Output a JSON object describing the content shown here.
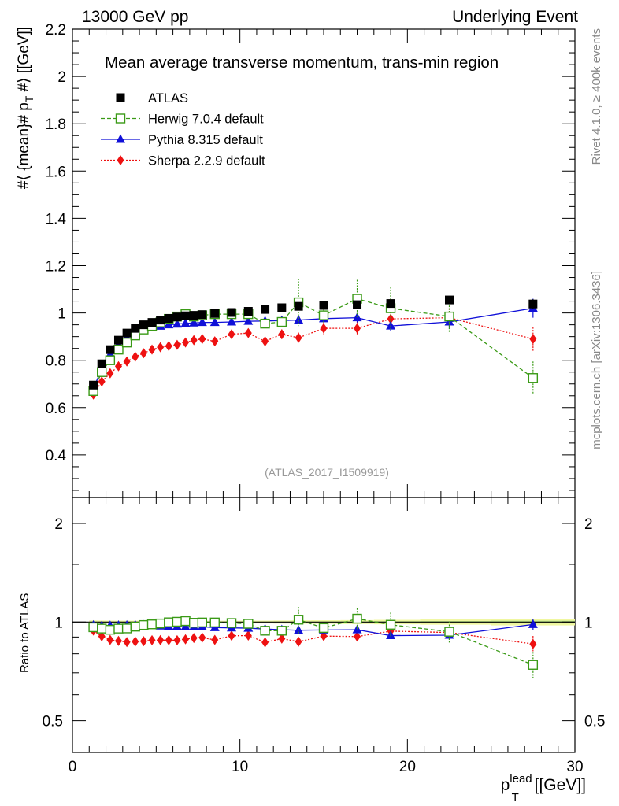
{
  "header": {
    "left_title": "13000 GeV pp",
    "right_title": "Underlying Event"
  },
  "side_labels": {
    "rivet": "Rivet 4.1.0, ≥ 400k events",
    "mcplots": "mcplots.cern.ch [arXiv:1306.3436]"
  },
  "colors": {
    "atlas": "#000000",
    "herwig": "#3a9a16",
    "pythia": "#1010d8",
    "sherpa": "#ee1111",
    "band_outer": "#f0f7a0",
    "band_inner": "#bde58a"
  },
  "chart_data": [
    {
      "type": "scatter",
      "title": "Mean average transverse momentum, trans-min region",
      "analysis_label": "(ATLAS_2017_I1509919)",
      "ylabel": "#⟨ {mean}# p_T #⟩ [[GeV]]",
      "ylabel_parts": {
        "a": "#⟨ {mean}# p",
        "sub": "T",
        "b": " #⟩ [[GeV]]"
      },
      "xlim": [
        0,
        30
      ],
      "ylim": [
        0.22,
        2.2
      ],
      "y_ticks": [
        0.4,
        0.6,
        0.8,
        1,
        1.2,
        1.4,
        1.6,
        1.8,
        2,
        2.2
      ],
      "y_tick_labels": [
        "0.4",
        "0.6",
        "0.8",
        "1",
        "1.2",
        "1.4",
        "1.6",
        "1.8",
        "2",
        "2.2"
      ],
      "legend_position": "top-left",
      "series": [
        {
          "name": "ATLAS",
          "key": "atlas",
          "marker": "square-filled",
          "line": "none",
          "x": [
            1.25,
            1.75,
            2.25,
            2.75,
            3.25,
            3.75,
            4.25,
            4.75,
            5.25,
            5.75,
            6.25,
            6.75,
            7.25,
            7.75,
            8.5,
            9.5,
            10.5,
            11.5,
            12.5,
            13.5,
            15,
            17,
            19,
            22.5,
            27.5
          ],
          "y": [
            0.695,
            0.785,
            0.845,
            0.885,
            0.915,
            0.935,
            0.95,
            0.96,
            0.97,
            0.977,
            0.983,
            0.988,
            0.99,
            0.993,
            0.998,
            1.002,
            1.007,
            1.015,
            1.022,
            1.028,
            1.032,
            1.035,
            1.04,
            1.055,
            1.038
          ],
          "err": [
            0.005,
            0.005,
            0.005,
            0.005,
            0.005,
            0.005,
            0.005,
            0.005,
            0.005,
            0.005,
            0.005,
            0.005,
            0.005,
            0.005,
            0.005,
            0.005,
            0.006,
            0.006,
            0.007,
            0.008,
            0.009,
            0.01,
            0.012,
            0.015,
            0.02
          ]
        },
        {
          "name": "Herwig 7.0.4 default",
          "key": "herwig",
          "marker": "square-open",
          "line": "dashed",
          "x": [
            1.25,
            1.75,
            2.25,
            2.75,
            3.25,
            3.75,
            4.25,
            4.75,
            5.25,
            5.75,
            6.25,
            6.75,
            7.25,
            7.75,
            8.5,
            9.5,
            10.5,
            11.5,
            12.5,
            13.5,
            15,
            17,
            19,
            22.5,
            27.5
          ],
          "y": [
            0.67,
            0.75,
            0.8,
            0.845,
            0.875,
            0.905,
            0.93,
            0.945,
            0.96,
            0.975,
            0.985,
            0.995,
            0.985,
            0.99,
            0.995,
            0.995,
            0.995,
            0.955,
            0.962,
            1.045,
            0.99,
            1.06,
            1.02,
            0.985,
            0.725
          ],
          "err": [
            0.005,
            0.006,
            0.006,
            0.007,
            0.007,
            0.008,
            0.008,
            0.009,
            0.009,
            0.01,
            0.01,
            0.011,
            0.011,
            0.012,
            0.013,
            0.014,
            0.016,
            0.018,
            0.02,
            0.1,
            0.035,
            0.08,
            0.09,
            0.07,
            0.07
          ]
        },
        {
          "name": "Pythia 8.315 default",
          "key": "pythia",
          "marker": "triangle-filled",
          "line": "solid",
          "x": [
            1.25,
            1.75,
            2.25,
            2.75,
            3.25,
            3.75,
            4.25,
            4.75,
            5.25,
            5.75,
            6.25,
            6.75,
            7.25,
            7.75,
            8.5,
            9.5,
            10.5,
            11.5,
            12.5,
            13.5,
            15,
            17,
            19,
            22.5,
            27.5
          ],
          "y": [
            0.68,
            0.765,
            0.825,
            0.865,
            0.895,
            0.915,
            0.93,
            0.938,
            0.944,
            0.95,
            0.953,
            0.956,
            0.958,
            0.96,
            0.96,
            0.962,
            0.965,
            0.966,
            0.968,
            0.97,
            0.976,
            0.98,
            0.945,
            0.962,
            1.02
          ],
          "err": [
            0.004,
            0.004,
            0.004,
            0.004,
            0.004,
            0.004,
            0.004,
            0.004,
            0.004,
            0.004,
            0.004,
            0.005,
            0.005,
            0.005,
            0.006,
            0.006,
            0.007,
            0.008,
            0.01,
            0.015,
            0.015,
            0.02,
            0.02,
            0.03,
            0.04
          ]
        },
        {
          "name": "Sherpa 2.2.9 default",
          "key": "sherpa",
          "marker": "diamond-filled",
          "line": "dotted",
          "x": [
            1.25,
            1.75,
            2.25,
            2.75,
            3.25,
            3.75,
            4.25,
            4.75,
            5.25,
            5.75,
            6.25,
            6.75,
            7.25,
            7.75,
            8.5,
            9.5,
            10.5,
            11.5,
            12.5,
            13.5,
            15,
            17,
            19,
            22.5,
            27.5
          ],
          "y": [
            0.655,
            0.71,
            0.745,
            0.775,
            0.795,
            0.815,
            0.83,
            0.845,
            0.855,
            0.86,
            0.865,
            0.875,
            0.885,
            0.89,
            0.88,
            0.91,
            0.915,
            0.88,
            0.91,
            0.895,
            0.935,
            0.935,
            0.975,
            0.98,
            0.89
          ],
          "err": [
            0.004,
            0.004,
            0.004,
            0.004,
            0.005,
            0.005,
            0.005,
            0.006,
            0.006,
            0.007,
            0.007,
            0.008,
            0.009,
            0.01,
            0.011,
            0.013,
            0.015,
            0.018,
            0.02,
            0.022,
            0.025,
            0.028,
            0.03,
            0.04,
            0.05
          ]
        }
      ]
    },
    {
      "type": "scatter",
      "ylabel": "Ratio to ATLAS",
      "xlabel": "p_T^lead [[GeV]]",
      "xlabel_parts": {
        "p": "p",
        "sub": "T",
        "sup": "lead",
        "rest": " [[GeV]]"
      },
      "xlim": [
        0,
        30
      ],
      "ylim": [
        0.4,
        2.4
      ],
      "y_scale": "log",
      "x_ticks": [
        0,
        10,
        20,
        30
      ],
      "x_tick_labels": [
        "0",
        "10",
        "20",
        "30"
      ],
      "y_ticks": [
        0.5,
        1,
        2
      ],
      "y_tick_labels": [
        "0.5",
        "1",
        "2"
      ],
      "reference_line": 1,
      "series": [
        {
          "name": "Herwig 7.0.4 default",
          "key": "herwig",
          "x": [
            1.25,
            1.75,
            2.25,
            2.75,
            3.25,
            3.75,
            4.25,
            4.75,
            5.25,
            5.75,
            6.25,
            6.75,
            7.25,
            7.75,
            8.5,
            9.5,
            10.5,
            11.5,
            12.5,
            13.5,
            15,
            17,
            19,
            22.5,
            27.5
          ],
          "y": [
            0.964,
            0.955,
            0.947,
            0.955,
            0.956,
            0.968,
            0.979,
            0.984,
            0.99,
            0.998,
            1.002,
            1.007,
            0.995,
            0.997,
            0.997,
            0.993,
            0.988,
            0.941,
            0.941,
            1.017,
            0.959,
            1.024,
            0.981,
            0.934,
            0.74
          ],
          "err": [
            0.007,
            0.008,
            0.008,
            0.008,
            0.008,
            0.009,
            0.009,
            0.01,
            0.01,
            0.011,
            0.011,
            0.012,
            0.012,
            0.013,
            0.014,
            0.015,
            0.017,
            0.019,
            0.021,
            0.095,
            0.035,
            0.078,
            0.088,
            0.068,
            0.07
          ]
        },
        {
          "name": "Pythia 8.315 default",
          "key": "pythia",
          "x": [
            1.25,
            1.75,
            2.25,
            2.75,
            3.25,
            3.75,
            4.25,
            4.75,
            5.25,
            5.75,
            6.25,
            6.75,
            7.25,
            7.75,
            8.5,
            9.5,
            10.5,
            11.5,
            12.5,
            13.5,
            15,
            17,
            19,
            22.5,
            27.5
          ],
          "y": [
            0.978,
            0.975,
            0.976,
            0.977,
            0.978,
            0.979,
            0.979,
            0.977,
            0.973,
            0.972,
            0.969,
            0.968,
            0.968,
            0.967,
            0.962,
            0.96,
            0.958,
            0.952,
            0.947,
            0.944,
            0.946,
            0.947,
            0.909,
            0.912,
            0.983
          ],
          "err": [
            0.006,
            0.006,
            0.006,
            0.006,
            0.006,
            0.006,
            0.006,
            0.006,
            0.006,
            0.006,
            0.006,
            0.007,
            0.007,
            0.007,
            0.008,
            0.008,
            0.009,
            0.01,
            0.012,
            0.016,
            0.016,
            0.021,
            0.022,
            0.03,
            0.04
          ]
        },
        {
          "name": "Sherpa 2.2.9 default",
          "key": "sherpa",
          "x": [
            1.25,
            1.75,
            2.25,
            2.75,
            3.25,
            3.75,
            4.25,
            4.75,
            5.25,
            5.75,
            6.25,
            6.75,
            7.25,
            7.75,
            8.5,
            9.5,
            10.5,
            11.5,
            12.5,
            13.5,
            15,
            17,
            19,
            22.5,
            27.5
          ],
          "y": [
            0.942,
            0.904,
            0.882,
            0.876,
            0.869,
            0.872,
            0.874,
            0.88,
            0.881,
            0.88,
            0.88,
            0.886,
            0.894,
            0.896,
            0.882,
            0.908,
            0.909,
            0.867,
            0.89,
            0.871,
            0.906,
            0.903,
            0.938,
            0.929,
            0.857
          ],
          "err": [
            0.006,
            0.006,
            0.006,
            0.006,
            0.007,
            0.007,
            0.007,
            0.008,
            0.008,
            0.009,
            0.009,
            0.01,
            0.011,
            0.012,
            0.013,
            0.015,
            0.017,
            0.019,
            0.021,
            0.023,
            0.026,
            0.03,
            0.032,
            0.04,
            0.05
          ]
        }
      ]
    }
  ]
}
